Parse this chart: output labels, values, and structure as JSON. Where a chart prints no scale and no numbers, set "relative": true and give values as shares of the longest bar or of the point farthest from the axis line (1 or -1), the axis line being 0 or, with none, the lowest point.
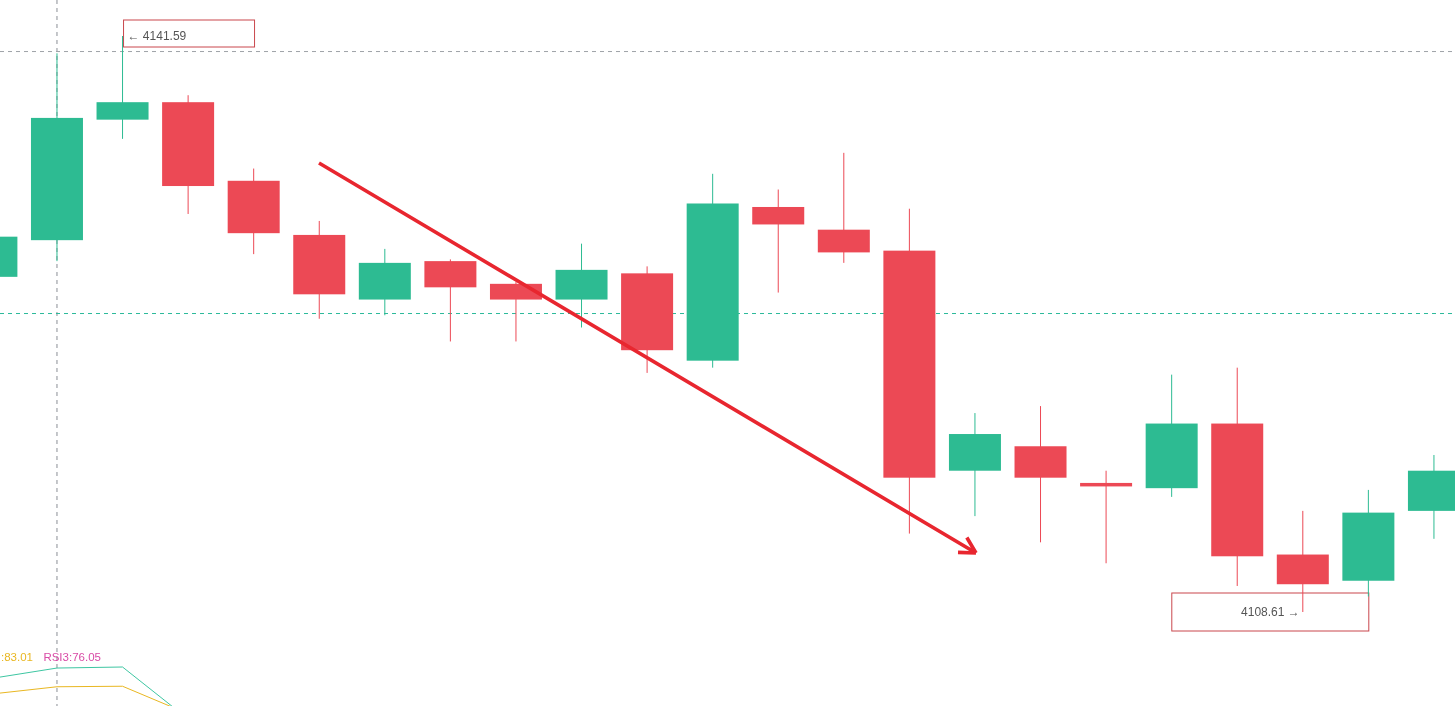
{
  "chart_data": [
    {
      "type": "candlestick",
      "categories": [
        null,
        null,
        null,
        null,
        null,
        null,
        null,
        null,
        null,
        null,
        null,
        null,
        null,
        null,
        null,
        null,
        null,
        null,
        null,
        null,
        null,
        null,
        null
      ],
      "ohlc": [
        [
          4127.8,
          4130.1,
          4127.8,
          4130.1
        ],
        [
          4129.9,
          4140.6,
          4128.7,
          4136.9
        ],
        [
          4136.8,
          4141.59,
          4135.7,
          4137.8
        ],
        [
          4137.8,
          4138.2,
          4131.4,
          4133.0
        ],
        [
          4133.3,
          4134.0,
          4129.1,
          4130.3
        ],
        [
          4130.2,
          4131.0,
          4125.4,
          4126.8
        ],
        [
          4126.5,
          4129.4,
          4125.6,
          4128.6
        ],
        [
          4128.7,
          4128.8,
          4124.1,
          4127.2
        ],
        [
          4127.4,
          4127.5,
          4124.1,
          4126.5
        ],
        [
          4126.5,
          4129.7,
          4124.9,
          4128.2
        ],
        [
          4128.0,
          4128.4,
          4122.3,
          4123.6
        ],
        [
          4123.0,
          4133.7,
          4122.6,
          4132.0
        ],
        [
          4131.8,
          4132.8,
          4126.9,
          4130.8
        ],
        [
          4130.5,
          4134.9,
          4128.6,
          4129.2
        ],
        [
          4129.3,
          4131.7,
          4113.1,
          4116.3
        ],
        [
          4116.7,
          4120.0,
          4114.1,
          4118.8
        ],
        [
          4118.1,
          4120.4,
          4112.6,
          4116.3
        ],
        [
          4116.0,
          4116.7,
          4111.4,
          4115.8
        ],
        [
          4115.7,
          4122.2,
          4115.2,
          4119.4
        ],
        [
          4119.4,
          4122.6,
          4110.1,
          4111.8
        ],
        [
          4111.9,
          4114.4,
          4108.61,
          4110.2
        ],
        [
          4110.4,
          4115.6,
          4109.5,
          4114.3
        ],
        [
          4114.4,
          4117.6,
          4112.8,
          4116.7
        ]
      ],
      "colors": [
        "#2dbb92",
        "#2dbb92",
        "#2dbb92",
        "#ec4955",
        "#ec4955",
        "#ec4955",
        "#2dbb92",
        "#ec4955",
        "#ec4955",
        "#2dbb92",
        "#ec4955",
        "#2dbb92",
        "#ec4955",
        "#ec4955",
        "#ec4955",
        "#2dbb92",
        "#ec4955",
        "#ec4955",
        "#2dbb92",
        "#ec4955",
        "#ec4955",
        "#2dbb92",
        "#2dbb92"
      ],
      "ref_lines": [
        {
          "axis": "y",
          "value": 4140.7,
          "color": "#9ea3a8",
          "line_style": "dashed"
        },
        {
          "axis": "y",
          "value": 4125.7,
          "color": "#2bb99a",
          "line_style": "dashed"
        }
      ],
      "annotations": [
        "← 4141.59",
        "4108.61 →"
      ]
    },
    {
      "type": "line",
      "relative": true,
      "legend": "top left",
      "categories": [
        null,
        null,
        null,
        null,
        null,
        null,
        null,
        null,
        null,
        null,
        null,
        null,
        null,
        null,
        null,
        null,
        null,
        null,
        null,
        null,
        null,
        null,
        null
      ],
      "series": [
        {
          "name": ":83.01",
          "color": "#e9b722",
          "values": [
            0.48,
            0.62,
            0.63,
            0.1,
            null,
            null,
            null,
            null,
            null,
            null,
            null,
            null,
            null,
            null,
            null,
            null,
            null,
            null,
            null,
            null,
            null,
            null,
            null
          ]
        },
        {
          "name": "RSI3:76.05",
          "color": "#d94ba6",
          "values": [
            null,
            null,
            null,
            null,
            null,
            null,
            null,
            null,
            null,
            null,
            null,
            null,
            null,
            null,
            null,
            null,
            null,
            null,
            null,
            null,
            null,
            null,
            null
          ]
        },
        {
          "color": "#3ec6a2",
          "values": [
            0.78,
            0.98,
            1,
            0,
            null,
            null,
            null,
            null,
            null,
            null,
            null,
            null,
            null,
            null,
            null,
            null,
            null,
            null,
            null,
            null,
            null,
            null,
            null
          ]
        }
      ]
    }
  ]
}
